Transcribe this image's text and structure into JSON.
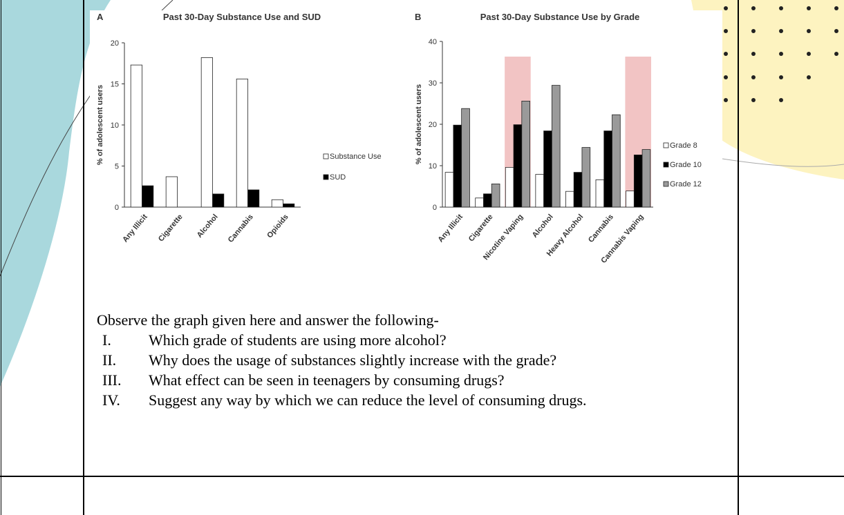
{
  "chart_data": [
    {
      "type": "bar",
      "panel": "A",
      "title": "Past 30-Day Substance Use and SUD",
      "y_label": "% of adolescent users",
      "categories": [
        "Any Illicit",
        "Cigarette",
        "Alcohol",
        "Cannabis",
        "Opioids"
      ],
      "series": [
        {
          "name": "Substance Use",
          "color": "#ffffff",
          "values": [
            17.3,
            3.7,
            18.2,
            15.6,
            0.9
          ]
        },
        {
          "name": "SUD",
          "color": "#000000",
          "values": [
            2.6,
            null,
            1.6,
            2.1,
            0.4
          ]
        }
      ],
      "ylim": [
        0,
        20
      ],
      "yticks": [
        0,
        5,
        10,
        15,
        20
      ]
    },
    {
      "type": "bar",
      "panel": "B",
      "title": "Past 30-Day Substance Use by Grade",
      "y_label": "% of adolescent users",
      "categories": [
        "Any Illicit",
        "Cigarette",
        "Nicotine Vaping",
        "Alcohol",
        "Heavy Alcohol",
        "Cannabis",
        "Cannabis Vaping"
      ],
      "series": [
        {
          "name": "Grade 8",
          "color": "#ffffff",
          "values": [
            8.4,
            2.2,
            9.6,
            7.9,
            3.8,
            6.6,
            3.9
          ]
        },
        {
          "name": "Grade 10",
          "color": "#000000",
          "values": [
            19.8,
            3.2,
            19.9,
            18.4,
            8.4,
            18.4,
            12.6
          ]
        },
        {
          "name": "Grade 12",
          "color": "#9a9a9a",
          "values": [
            23.8,
            5.6,
            25.6,
            29.4,
            14.4,
            22.3,
            13.9
          ]
        }
      ],
      "highlight_categories": [
        2,
        6
      ],
      "highlight_color": "#f2c4c4",
      "ylim": [
        0,
        40
      ],
      "yticks": [
        0,
        10,
        20,
        30,
        40
      ]
    }
  ],
  "questions": {
    "intro": "Observe the graph given here and answer the following-",
    "items": [
      {
        "numeral": "I.",
        "text": "Which grade of students are using more alcohol?"
      },
      {
        "numeral": "II.",
        "text": "Why does the usage of substances slightly increase with the grade?"
      },
      {
        "numeral": "III.",
        "text": "What effect can be seen in teenagers by consuming drugs?"
      },
      {
        "numeral": "IV.",
        "text": "Suggest any way by which we can reduce the level of consuming drugs."
      }
    ]
  }
}
